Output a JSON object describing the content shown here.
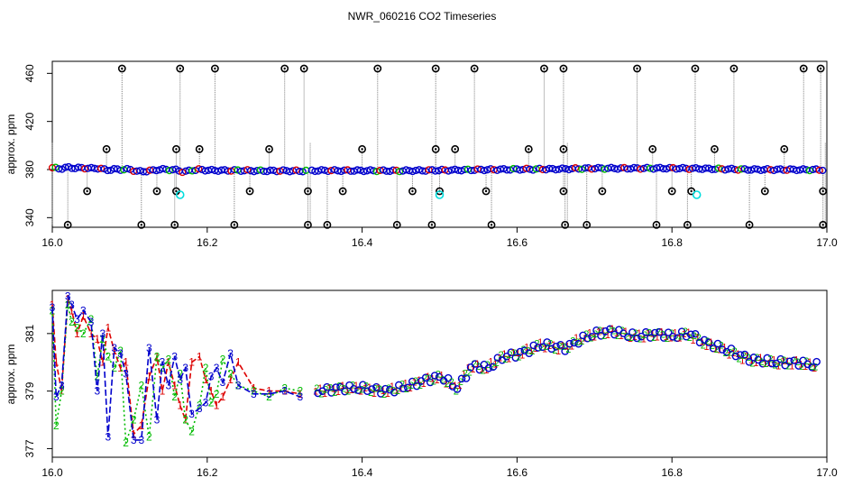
{
  "figure": {
    "title": "NWR_060216  CO2 Timeseries"
  },
  "colors": {
    "series_1": "#dd0000",
    "series_2": "#00bb00",
    "series_3": "#0000cc",
    "outlier": "#000000",
    "flag": "#00dddd",
    "whisker": "#808080"
  },
  "chart_data": [
    {
      "type": "scatter",
      "title": "NWR_060216  CO2 Timeseries",
      "xlabel": "",
      "ylabel": "approx. ppm",
      "xlim": [
        16.0,
        17.0
      ],
      "ylim": [
        332,
        470
      ],
      "x_ticks": [
        "16.0",
        "16.2",
        "16.4",
        "16.6",
        "16.8",
        "17.0"
      ],
      "y_ticks": [
        "340",
        "380",
        "420",
        "460"
      ],
      "grid": false,
      "baseline": {
        "x": [
          16.0,
          16.01,
          16.02,
          16.03,
          16.04,
          16.05,
          16.06,
          16.07,
          16.08,
          16.09,
          16.1,
          16.11,
          16.12,
          16.13,
          16.14,
          16.15,
          16.16,
          16.17,
          16.18,
          16.19,
          16.2,
          16.22,
          16.24,
          16.26,
          16.28,
          16.3,
          16.32,
          16.35,
          16.4,
          16.45,
          16.5,
          16.55,
          16.6,
          16.65,
          16.7,
          16.75,
          16.8,
          16.85,
          16.9,
          16.95,
          16.99
        ],
        "y": [
          381.5,
          380.6,
          381.8,
          381.2,
          381.4,
          380.9,
          381.2,
          379.5,
          380.2,
          380.0,
          380.1,
          378.4,
          378.6,
          379.3,
          380.2,
          379.9,
          379.6,
          378.0,
          379.4,
          380.0,
          379.4,
          379.2,
          379.3,
          379.0,
          378.9,
          379.0,
          378.8,
          379.2,
          379.1,
          379.0,
          379.4,
          379.8,
          380.2,
          380.4,
          381.0,
          381.0,
          381.1,
          380.6,
          380.0,
          379.9,
          379.8
        ]
      },
      "outliers_high": [
        16.09,
        16.165,
        16.21,
        16.3,
        16.325,
        16.42,
        16.495,
        16.545,
        16.635,
        16.66,
        16.755,
        16.83,
        16.88,
        16.97,
        16.992
      ],
      "outliers_mid": [
        16.07,
        16.16,
        16.19,
        16.28,
        16.4,
        16.495,
        16.52,
        16.615,
        16.66,
        16.775,
        16.855,
        16.945
      ],
      "outliers_low": [
        16.045,
        16.135,
        16.16,
        16.255,
        16.33,
        16.375,
        16.465,
        16.5,
        16.56,
        16.66,
        16.71,
        16.8,
        16.825,
        16.92,
        16.995
      ],
      "outliers_vlow": [
        16.02,
        16.115,
        16.158,
        16.235,
        16.33,
        16.355,
        16.445,
        16.49,
        16.567,
        16.662,
        16.69,
        16.78,
        16.82,
        16.9,
        16.995
      ],
      "flagged": [
        {
          "x": 16.165,
          "y": 359
        },
        {
          "x": 16.5,
          "y": 359
        },
        {
          "x": 16.832,
          "y": 359
        }
      ],
      "outlier_levels": {
        "high": 464,
        "mid": 397,
        "low": 362,
        "vlow": 334
      }
    },
    {
      "type": "line",
      "title": "",
      "xlabel": "",
      "ylabel": "approx. ppm",
      "xlim": [
        16.0,
        17.0
      ],
      "ylim": [
        376.7,
        382.5
      ],
      "x_ticks": [
        "16.0",
        "16.2",
        "16.4",
        "16.6",
        "16.8",
        "17.0"
      ],
      "y_ticks": [
        "377",
        "379",
        "381"
      ],
      "grid": false,
      "series": [
        {
          "name": "1",
          "marker": "1",
          "x": [
            16.0,
            16.005,
            16.012,
            16.02,
            16.025,
            16.032,
            16.04,
            16.05,
            16.058,
            16.065,
            16.072,
            16.08,
            16.088,
            16.095,
            16.105,
            16.115,
            16.125,
            16.135,
            16.142,
            16.15,
            16.158,
            16.165,
            16.172,
            16.18,
            16.19,
            16.198,
            16.205,
            16.212,
            16.22,
            16.23,
            16.24,
            16.26,
            16.28,
            16.3,
            16.32
          ],
          "y": [
            382.0,
            380.0,
            379.0,
            382.2,
            381.8,
            381.0,
            381.6,
            381.0,
            380.8,
            380.0,
            381.2,
            380.4,
            379.8,
            380.0,
            377.5,
            377.8,
            379.5,
            380.2,
            379.0,
            380.0,
            379.2,
            378.5,
            378.0,
            380.0,
            380.2,
            379.4,
            379.0,
            378.5,
            378.8,
            379.4,
            380.0,
            379.1,
            379.0,
            379.0,
            378.9
          ]
        },
        {
          "name": "2",
          "marker": "2",
          "x": [
            16.0,
            16.005,
            16.012,
            16.02,
            16.025,
            16.032,
            16.04,
            16.05,
            16.058,
            16.065,
            16.072,
            16.08,
            16.088,
            16.095,
            16.105,
            16.115,
            16.125,
            16.135,
            16.142,
            16.15,
            16.158,
            16.165,
            16.172,
            16.18,
            16.19,
            16.198,
            16.205,
            16.212,
            16.22,
            16.23,
            16.24,
            16.26,
            16.28,
            16.3,
            16.32
          ],
          "y": [
            381.8,
            377.8,
            379.0,
            382.0,
            381.4,
            381.2,
            381.0,
            381.5,
            379.5,
            380.8,
            380.2,
            379.8,
            380.4,
            377.2,
            378.0,
            379.2,
            377.4,
            380.2,
            379.8,
            380.1,
            378.8,
            379.6,
            378.0,
            377.6,
            378.5,
            379.8,
            378.6,
            378.9,
            380.1,
            379.6,
            379.2,
            379.0,
            378.8,
            379.1,
            379.0
          ]
        },
        {
          "name": "3",
          "marker": "3",
          "x": [
            16.0,
            16.005,
            16.012,
            16.02,
            16.025,
            16.032,
            16.04,
            16.05,
            16.058,
            16.065,
            16.072,
            16.08,
            16.088,
            16.095,
            16.105,
            16.115,
            16.125,
            16.135,
            16.142,
            16.15,
            16.158,
            16.165,
            16.172,
            16.18,
            16.19,
            16.198,
            16.205,
            16.212,
            16.22,
            16.23,
            16.24,
            16.26,
            16.28,
            16.3,
            16.32
          ],
          "y": [
            381.9,
            378.8,
            379.2,
            382.3,
            382.0,
            381.5,
            381.8,
            381.4,
            379.0,
            381.0,
            377.4,
            380.5,
            380.3,
            379.6,
            377.3,
            377.3,
            380.5,
            378.0,
            380.0,
            379.2,
            380.2,
            379.4,
            379.8,
            378.2,
            378.4,
            378.6,
            379.5,
            379.8,
            379.3,
            380.3,
            379.2,
            378.9,
            378.9,
            379.0,
            378.8
          ]
        }
      ],
      "smooth_trend": {
        "x": [
          16.34,
          16.37,
          16.4,
          16.43,
          16.46,
          16.48,
          16.5,
          16.52,
          16.54,
          16.56,
          16.58,
          16.6,
          16.63,
          16.66,
          16.68,
          16.7,
          16.72,
          16.75,
          16.78,
          16.8,
          16.82,
          16.84,
          16.86,
          16.88,
          16.9,
          16.93,
          16.96,
          16.98
        ],
        "y": [
          379.0,
          379.1,
          379.1,
          379.0,
          379.2,
          379.4,
          379.5,
          379.1,
          379.9,
          379.8,
          380.2,
          380.3,
          380.6,
          380.5,
          380.8,
          381.0,
          381.1,
          380.9,
          381.0,
          380.9,
          381.0,
          380.7,
          380.5,
          380.3,
          380.1,
          380.0,
          380.0,
          379.9
        ]
      },
      "gap_after": 16.32
    }
  ]
}
